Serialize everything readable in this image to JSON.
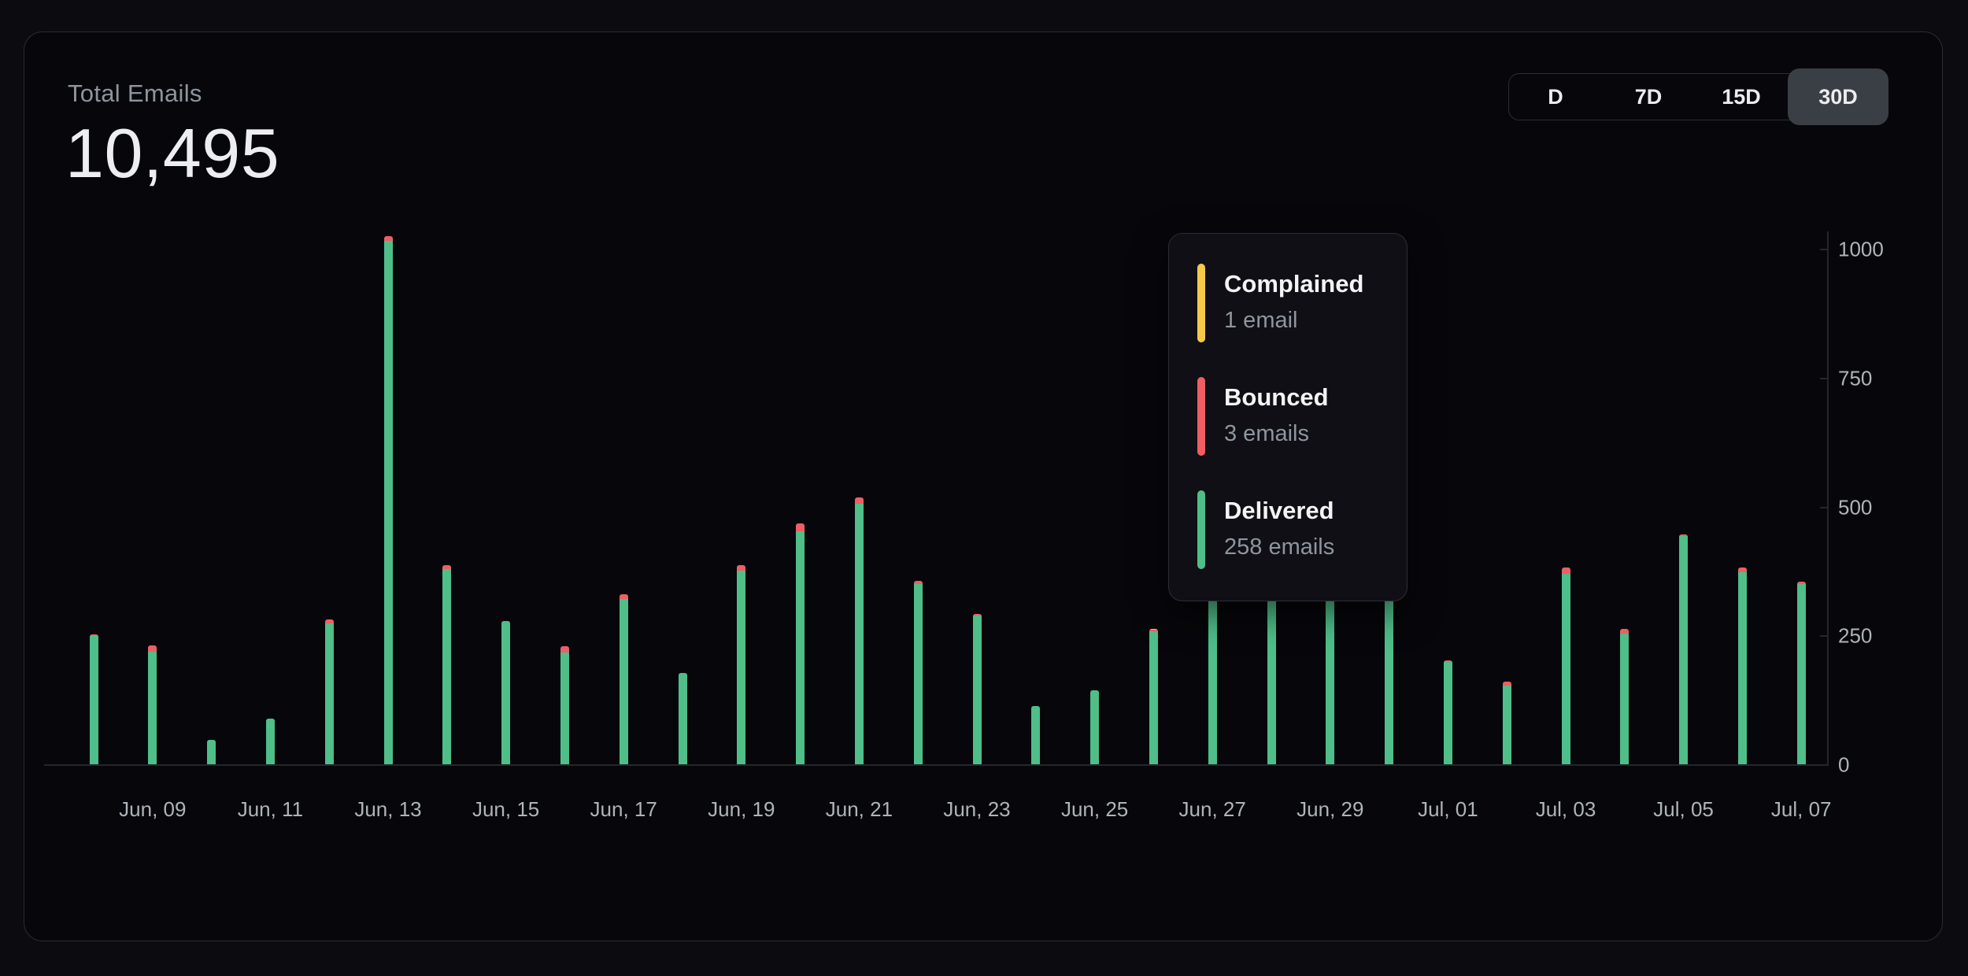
{
  "header": {
    "title": "Total Emails",
    "total_value": "10,495"
  },
  "range_selector": {
    "options": [
      {
        "label": "D",
        "selected": false
      },
      {
        "label": "7D",
        "selected": false
      },
      {
        "label": "15D",
        "selected": false
      },
      {
        "label": "30D",
        "selected": true
      }
    ],
    "selected_bg": "#3A3E45"
  },
  "tooltip": {
    "items": [
      {
        "name": "Complained",
        "value_text": "1 email",
        "color": "#F6C94A"
      },
      {
        "name": "Bounced",
        "value_text": "3 emails",
        "color": "#EE5E64"
      },
      {
        "name": "Delivered",
        "value_text": "258 emails",
        "color": "#4FBE89"
      }
    ]
  },
  "chart_data": {
    "type": "bar",
    "stacked": true,
    "title": "Total Emails",
    "xlabel": "",
    "ylabel": "",
    "ylim": [
      0,
      1000
    ],
    "yticks": [
      0,
      250,
      500,
      750,
      1000
    ],
    "grid": false,
    "y_axis_side": "right",
    "legend_position": "tooltip",
    "categories": [
      "Jun, 08",
      "Jun, 09",
      "Jun, 10",
      "Jun, 11",
      "Jun, 12",
      "Jun, 13",
      "Jun, 14",
      "Jun, 15",
      "Jun, 16",
      "Jun, 17",
      "Jun, 18",
      "Jun, 19",
      "Jun, 20",
      "Jun, 21",
      "Jun, 22",
      "Jun, 23",
      "Jun, 24",
      "Jun, 25",
      "Jun, 26",
      "Jun, 27",
      "Jun, 28",
      "Jun, 29",
      "Jun, 30",
      "Jul, 01",
      "Jul, 02",
      "Jul, 03",
      "Jul, 04",
      "Jul, 05",
      "Jul, 06",
      "Jul, 07"
    ],
    "xtick_labels_shown": [
      "Jun, 09",
      "Jun, 11",
      "Jun, 13",
      "Jun, 15",
      "Jun, 17",
      "Jun, 19",
      "Jun, 21",
      "Jun, 23",
      "Jun, 25",
      "Jun, 27",
      "Jun, 29",
      "Jul, 01",
      "Jul, 03",
      "Jul, 05",
      "Jul, 07"
    ],
    "series": [
      {
        "name": "Delivered",
        "color": "#4FBE89",
        "values": [
          250,
          219,
          47,
          89,
          273,
          1015,
          378,
          278,
          217,
          320,
          177,
          376,
          452,
          506,
          350,
          288,
          113,
          143,
          258,
          640,
          592,
          612,
          570,
          198,
          152,
          370,
          253,
          443,
          372,
          349
        ]
      },
      {
        "name": "Bounced",
        "color": "#EE5E64",
        "values": [
          2,
          11,
          0,
          0,
          8,
          10,
          8,
          0,
          12,
          10,
          0,
          10,
          15,
          12,
          6,
          4,
          0,
          0,
          3,
          8,
          8,
          8,
          5,
          4,
          8,
          12,
          10,
          3,
          10,
          5
        ]
      },
      {
        "name": "Complained",
        "color": "#F6C94A",
        "values": [
          0,
          0,
          0,
          0,
          0,
          0,
          0,
          0,
          0,
          0,
          0,
          0,
          0,
          0,
          0,
          0,
          0,
          0,
          1,
          2,
          0,
          0,
          0,
          0,
          0,
          0,
          0,
          0,
          0,
          0
        ]
      }
    ],
    "axis_color": "#24262D",
    "tick_label_color": "#AFB3BA"
  }
}
